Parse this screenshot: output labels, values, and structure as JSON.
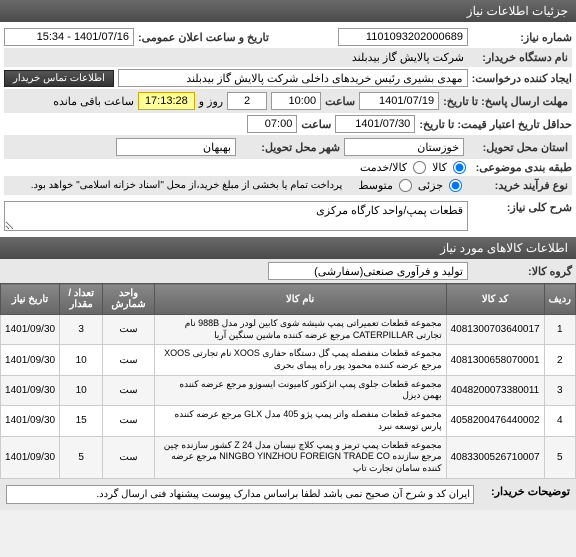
{
  "header": {
    "title": "جزئیات اطلاعات نیاز"
  },
  "form": {
    "req_no_label": "شماره نیاز:",
    "req_no": "1101093202000689",
    "pub_date_label": "تاریخ و ساعت اعلان عمومی:",
    "pub_date": "1401/07/16 - 15:34",
    "org_label": "نام دستگاه خریدار:",
    "org": "شرکت پالایش گاز بیدبلند",
    "creator_label": "ایجاد کننده درخواست:",
    "creator": "مهدی بشیری رئیس خریدهای داخلی شرکت پالایش گاز بیدبلند",
    "contact_btn": "اطلاعات تماس خریدار",
    "deadline_label": "مهلت ارسال پاسخ: تا تاریخ:",
    "deadline_date": "1401/07/19",
    "time_label": "ساعت",
    "deadline_time": "10:00",
    "days_remain": "2",
    "days_label": "روز و",
    "countdown": "17:13:28",
    "remain_label": "ساعت باقی مانده",
    "valid_label": "حداقل تاریخ اعتبار قیمت: تا تاریخ:",
    "valid_date": "1401/07/30",
    "valid_time": "07:00",
    "province_label": "استان محل تحویل:",
    "province": "خوزستان",
    "city_label": "شهر محل تحویل:",
    "city": "بهبهان",
    "budget_label": "طبقه بندی موضوعی:",
    "budget_opt1": "کالا",
    "budget_opt2": "کالا/خدمت",
    "process_label": "نوع فرآیند خرید:",
    "process_opt1": "جزئی",
    "process_opt2": "متوسط",
    "process_note": "پرداخت تمام یا بخشی از مبلغ خرید،از محل \"اسناد خزانه اسلامی\" خواهد بود.",
    "summary_label": "شرح کلی نیاز:",
    "summary": "قطعات پمپ/واحد کارگاه مرکزی"
  },
  "goods": {
    "title": "اطلاعات کالاهای مورد نیاز",
    "group_label": "گروه کالا:",
    "group": "تولید و فرآوری صنعتی(سفارشی)",
    "columns": {
      "row": "ردیف",
      "code": "کد کالا",
      "name": "نام کالا",
      "unit": "واحد شمارش",
      "qty": "تعداد / مقدار",
      "date": "تاریخ نیاز"
    },
    "rows": [
      {
        "n": "1",
        "code": "4081300703640017",
        "name": "مجموعه قطعات تعمیراتی پمپ شیشه شوی کابین لودر مدل 988B نام تجارتی CATERPILLAR مرجع عرضه کننده ماشین سنگین آریا",
        "unit": "ست",
        "qty": "3",
        "date": "1401/09/30"
      },
      {
        "n": "2",
        "code": "4081300658070001",
        "name": "مجموعه قطعات منفصله پمپ گل دستگاه حفاری XOOS نام تجارتی XOOS مرجع عرضه کننده محمود پور راه پیمای بحری",
        "unit": "ست",
        "qty": "10",
        "date": "1401/09/30"
      },
      {
        "n": "3",
        "code": "4048200073380011",
        "name": "مجموعه قطعات جلوی پمپ انژکتور کامیونت ایسوزو مرجع عرضه کننده بهمن دیزل",
        "unit": "ست",
        "qty": "10",
        "date": "1401/09/30"
      },
      {
        "n": "4",
        "code": "4058200476440002",
        "name": "مجموعه قطعات منفصله واتر پمپ پژو 405 مدل GLX مرجع عرضه کننده پارس توسعه نبرد",
        "unit": "ست",
        "qty": "15",
        "date": "1401/09/30"
      },
      {
        "n": "5",
        "code": "4083300526710007",
        "name": "مجموعه قطعات پمپ ترمز و پمپ کلاچ نیسان مدل Z 24 کشور سازنده چین مرجع سازنده NINGBO YINZHOU FOREIGN TRADE CO مرجع عرضه کننده سامان تجارت تاپ",
        "unit": "ست",
        "qty": "5",
        "date": "1401/09/30"
      }
    ]
  },
  "footer": {
    "label": "توضیحات خریدار:",
    "text": "ایران کد و شرح آن صحیح نمی باشد لطفا براساس مدارک پیوست پیشنهاد فنی ارسال گردد."
  },
  "colors": {
    "header_bg": "#555555",
    "yellow": "#ffff99"
  }
}
